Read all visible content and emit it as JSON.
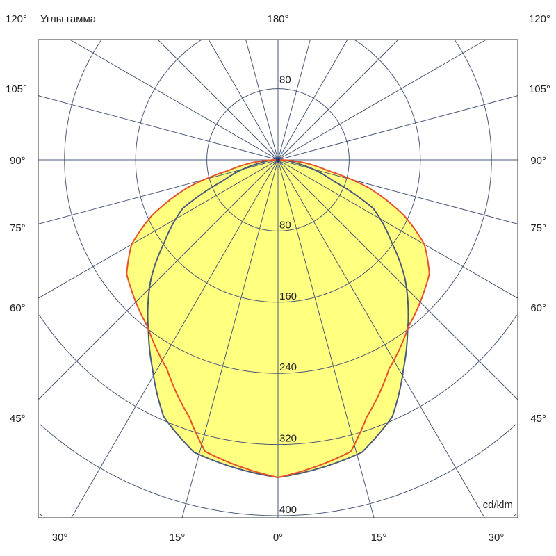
{
  "chart_data": {
    "type": "polar-line",
    "title": "Углы гамма",
    "unit": "cd/klm",
    "rmax": 480,
    "ring_values": [
      80,
      160,
      240,
      320,
      400,
      480
    ],
    "ring_labels": [
      "80",
      "160",
      "240",
      "320",
      "400"
    ],
    "top_ring_label": "80",
    "spoke_step_deg": 15,
    "angle_labels": {
      "top_left": "120°",
      "top_center": "180°",
      "top_right": "120°",
      "left": [
        "105°",
        "90°",
        "75°",
        "60°",
        "45°"
      ],
      "right": [
        "105°",
        "90°",
        "75°",
        "60°",
        "45°"
      ],
      "bottom": [
        "30°",
        "15°",
        "0°",
        "15°",
        "30°"
      ]
    },
    "fill_color": "#ffff80",
    "grid_color": "#4a5878",
    "series": [
      {
        "color": "#4a5a78",
        "angles": [
          0,
          16,
          24,
          31,
          37,
          47,
          54,
          63,
          69,
          80,
          90
        ],
        "values": [
          357,
          342,
          316,
          274,
          242,
          195,
          158,
          120,
          67,
          20,
          0
        ]
      },
      {
        "color": "#e8502a",
        "angles": [
          0,
          14,
          19,
          28,
          38,
          48,
          53,
          60,
          66,
          73,
          78,
          90
        ],
        "values": [
          357,
          338,
          306,
          266,
          238,
          221,
          213,
          190,
          156,
          106,
          56,
          0
        ]
      }
    ]
  }
}
